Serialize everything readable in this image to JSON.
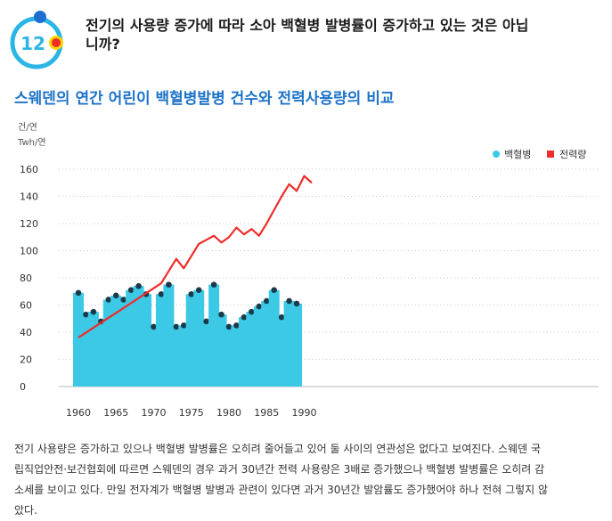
{
  "header": {
    "number": "12",
    "question_line1": "전기의 사용량 증가에 따라 소아 백혈병 발병률이 증가하고 있는 것은 아닙",
    "question_line2": "니까?",
    "accent_color": "#2bb5e6",
    "dot_color": "#ef2b2b",
    "dot_ring_color": "#ffd400"
  },
  "chart_title": "스웨덴의 연간 어린이 백혈병발병 건수와 전력사용량의 비교",
  "chart_data": {
    "type": "bar",
    "title": "스웨덴의 연간 어린이 백혈병발병 건수와 전력사용량의 비교",
    "ylabel_lines": [
      "건/연",
      "Twh/연"
    ],
    "xlabel": "",
    "ylim": [
      0,
      160
    ],
    "yticks": [
      0,
      20,
      40,
      60,
      80,
      100,
      120,
      140,
      160
    ],
    "xticks": [
      1960,
      1965,
      1970,
      1975,
      1980,
      1985,
      1990
    ],
    "grid": true,
    "legend_position": "top-right",
    "legend": [
      {
        "label": "백혈병",
        "color": "#3cc9e6",
        "marker": "circle"
      },
      {
        "label": "전력량",
        "color": "#ef2b2b",
        "marker": "square"
      }
    ],
    "series": [
      {
        "name": "백혈병",
        "type": "bar",
        "color": "#3cc9e6",
        "x": [
          1960,
          1961,
          1962,
          1963,
          1964,
          1965,
          1966,
          1967,
          1968,
          1969,
          1970,
          1971,
          1972,
          1973,
          1974,
          1975,
          1976,
          1977,
          1978,
          1979,
          1980,
          1981,
          1982,
          1983,
          1984,
          1985,
          1986,
          1987,
          1988,
          1989,
          1990,
          1991
        ],
        "values": [
          69,
          53,
          55,
          48,
          64,
          67,
          64,
          71,
          74,
          68,
          44,
          68,
          75,
          44,
          45,
          68,
          71,
          48,
          75,
          53,
          44,
          45,
          51,
          55,
          59,
          63,
          71,
          51,
          63,
          61,
          0,
          0
        ]
      },
      {
        "name": "전력량",
        "type": "line",
        "color": "#ef2b2b",
        "x": [
          1960,
          1971,
          1973,
          1974,
          1975,
          1976,
          1977,
          1978,
          1979,
          1980,
          1981,
          1982,
          1983,
          1984,
          1985,
          1986,
          1987,
          1988,
          1989,
          1990,
          1991
        ],
        "values": [
          36,
          76,
          94,
          87,
          96,
          105,
          108,
          111,
          106,
          110,
          117,
          112,
          116,
          111,
          120,
          130,
          140,
          149,
          144,
          155,
          150
        ]
      }
    ]
  },
  "description_lines": [
    "전기 사용량은 증가하고 있으나 백혈병 발병률은 오히려 줄어들고 있어 둘 사이의 연관성은 없다고 보여진다. 스웨덴 국",
    "립직업안전·보건협회에 따르면 스웨덴의 경우 과거 30년간 전력 사용량은 3배로 증가했으나 백혈병 발병률은 오히려 감",
    "소세를 보이고 있다. 만일 전자계가 백혈병 발병과 관련이 있다면 과거 30년간 발암률도 증가했어야 하나 전혀 그렇지 않",
    "았다."
  ]
}
